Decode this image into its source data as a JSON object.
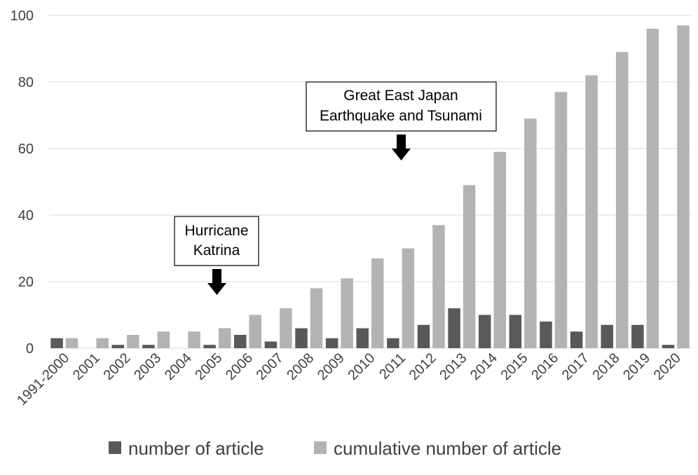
{
  "chart_data": {
    "type": "bar",
    "categories": [
      "1991-2000",
      "2001",
      "2002",
      "2003",
      "2004",
      "2005",
      "2006",
      "2007",
      "2008",
      "2009",
      "2010",
      "2011",
      "2012",
      "2013",
      "2014",
      "2015",
      "2016",
      "2017",
      "2018",
      "2019",
      "2020"
    ],
    "series": [
      {
        "name": "number of article",
        "color": "#595959",
        "values": [
          3,
          0,
          1,
          1,
          0,
          1,
          4,
          2,
          6,
          3,
          6,
          3,
          7,
          12,
          10,
          10,
          8,
          5,
          7,
          7,
          1
        ]
      },
      {
        "name": "cumulative number of article",
        "color": "#b3b3b3",
        "values": [
          3,
          3,
          4,
          5,
          5,
          6,
          10,
          12,
          18,
          21,
          27,
          30,
          37,
          49,
          59,
          69,
          77,
          82,
          89,
          96,
          97
        ]
      }
    ],
    "ylim": [
      0,
      100
    ],
    "yticks": [
      0,
      20,
      40,
      60,
      80,
      100
    ],
    "grid": true,
    "legend": "bottom",
    "annotations": [
      {
        "lines": [
          "Hurricane",
          "Katrina"
        ],
        "category": "2005"
      },
      {
        "lines": [
          "Great East Japan",
          "Earthquake and Tsunami"
        ],
        "category": "2011"
      }
    ]
  }
}
